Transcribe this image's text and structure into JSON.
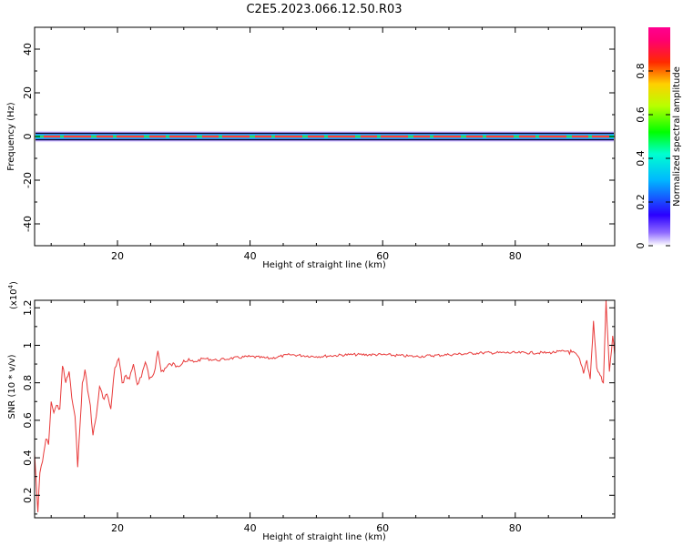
{
  "figure_title": "C2E5.2023.066.12.50.R03",
  "chart_data": [
    {
      "type": "heatmap",
      "title": "C2E5.2023.066.12.50.R03",
      "xlabel": "Height of straight line (km)",
      "ylabel": "Frequency (Hz)",
      "xlim": [
        7.5,
        95
      ],
      "ylim": [
        -50,
        50
      ],
      "x_ticks": [
        20,
        40,
        60,
        80
      ],
      "y_ticks": [
        40,
        20,
        0,
        -20,
        -40
      ],
      "band_center_hz": 0,
      "band_halfwidth_hz": 1.5,
      "grid": false,
      "colorbar": {
        "label": "Normalized spectral amplitude",
        "range": [
          0,
          1
        ],
        "ticks": [
          0.0,
          0.2,
          0.4,
          0.6,
          0.8
        ],
        "colors": [
          "#ffffff",
          "#6a00ff",
          "#0000ff",
          "#00ffff",
          "#00ff00",
          "#ffff00",
          "#ff0000",
          "#ff00a0"
        ]
      }
    },
    {
      "type": "line",
      "xlabel": "Height of straight line (km)",
      "ylabel": "SNR (10 * v/v)",
      "y_multiplier_label": "(x10",
      "y_multiplier_exp": "4",
      "xlim": [
        7.5,
        95
      ],
      "ylim": [
        0.08,
        1.24
      ],
      "x_ticks": [
        20,
        40,
        60,
        80
      ],
      "y_ticks": [
        0.2,
        0.4,
        0.6,
        0.8,
        1.0,
        1.2
      ],
      "grid": false,
      "series": [
        {
          "color": "#e83a3a",
          "x": [
            7.5,
            8.0,
            8.3,
            8.7,
            9.2,
            9.6,
            10.0,
            10.4,
            10.8,
            11.3,
            11.7,
            12.2,
            12.7,
            13.1,
            13.6,
            14.0,
            14.4,
            14.7,
            15.1,
            15.5,
            15.9,
            16.3,
            16.8,
            17.3,
            17.8,
            18.4,
            19.0,
            19.6,
            20.2,
            20.7,
            21.3,
            21.8,
            22.4,
            23.0,
            23.6,
            24.2,
            24.8,
            25.5,
            26.1,
            26.6,
            27.3,
            28.0,
            29.0,
            30.0,
            31.5,
            33.0,
            35.0,
            37.0,
            40.0,
            43.0,
            46.0,
            50.0,
            55.0,
            60.0,
            65.0,
            70.0,
            75.0,
            80.0,
            85.0,
            88.0,
            89.5,
            90.3,
            90.8,
            91.3,
            91.8,
            92.3,
            92.8,
            93.3,
            93.7,
            94.2,
            94.7,
            95.0
          ],
          "values": [
            0.42,
            0.11,
            0.32,
            0.38,
            0.5,
            0.47,
            0.7,
            0.64,
            0.68,
            0.66,
            0.89,
            0.8,
            0.86,
            0.72,
            0.62,
            0.35,
            0.6,
            0.8,
            0.87,
            0.76,
            0.68,
            0.52,
            0.62,
            0.78,
            0.72,
            0.74,
            0.66,
            0.88,
            0.93,
            0.8,
            0.84,
            0.82,
            0.9,
            0.79,
            0.83,
            0.91,
            0.82,
            0.85,
            0.97,
            0.86,
            0.88,
            0.9,
            0.89,
            0.92,
            0.91,
            0.93,
            0.92,
            0.93,
            0.94,
            0.93,
            0.95,
            0.94,
            0.95,
            0.95,
            0.94,
            0.95,
            0.96,
            0.96,
            0.96,
            0.97,
            0.94,
            0.85,
            0.92,
            0.82,
            1.13,
            0.88,
            0.84,
            0.8,
            1.24,
            0.86,
            1.05,
            0.95
          ]
        }
      ]
    }
  ]
}
